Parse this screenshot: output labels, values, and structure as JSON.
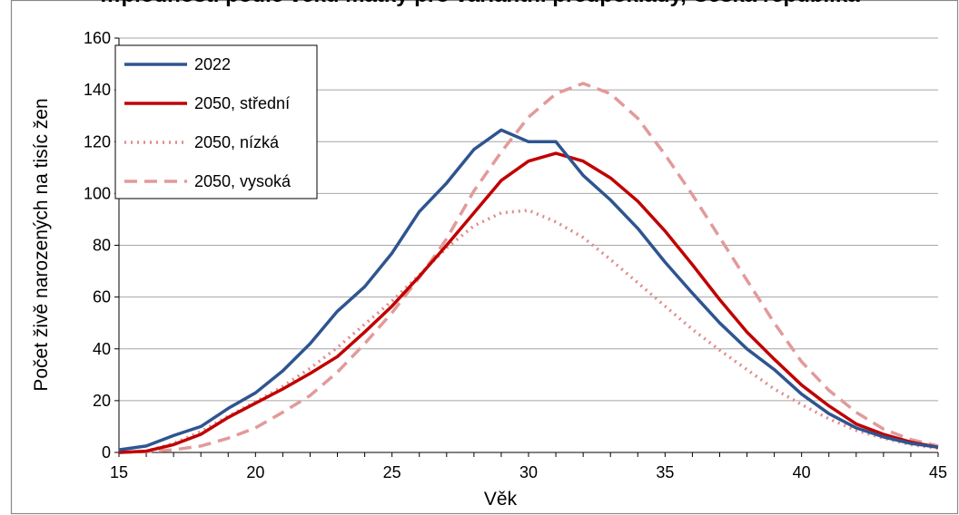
{
  "colors": {
    "2022": "#2e5590",
    "2050, střední": "#c00000",
    "2050, nízká": "#e28a8a",
    "2050, vysoká": "#e29a9a",
    "grid": "#a6a6a6"
  },
  "chart_data": {
    "type": "line",
    "title": "…plodnosti podle věku matky pro variantní předpoklady, Česká republika",
    "xlabel": "Věk",
    "ylabel": "Počet živě narozených na tisíc žen",
    "xlim": [
      15,
      45
    ],
    "ylim": [
      0,
      160
    ],
    "x_ticks": [
      15,
      20,
      25,
      30,
      35,
      40,
      45
    ],
    "y_ticks": [
      0,
      20,
      40,
      60,
      80,
      100,
      120,
      140,
      160
    ],
    "grid": "horizontal",
    "legend_position": "top-left",
    "x": [
      15,
      16,
      17,
      18,
      19,
      20,
      21,
      22,
      23,
      24,
      25,
      26,
      27,
      28,
      29,
      30,
      31,
      32,
      33,
      34,
      35,
      36,
      37,
      38,
      39,
      40,
      41,
      42,
      43,
      44,
      45
    ],
    "series": [
      {
        "name": "2022",
        "style": "solid",
        "values": [
          1,
          2.5,
          6.5,
          10,
          17,
          23,
          31.5,
          42,
          54.5,
          64,
          77,
          93,
          104,
          117,
          124.5,
          120,
          120,
          107,
          97.5,
          86.5,
          73.5,
          61.5,
          50,
          40,
          32,
          22.5,
          15,
          9.5,
          6,
          3.5,
          2
        ]
      },
      {
        "name": "2050, střední",
        "style": "solid",
        "values": [
          0,
          0.5,
          3,
          7,
          13.5,
          19,
          24.5,
          30.5,
          37,
          46.5,
          56.5,
          68,
          80,
          92.5,
          105,
          112.5,
          115.5,
          112.5,
          106,
          97,
          85.5,
          72.5,
          59,
          46.5,
          36,
          26,
          18,
          11,
          7,
          4,
          2
        ]
      },
      {
        "name": "2050, nízká",
        "style": "dotted",
        "values": [
          0,
          0.5,
          3.5,
          8,
          14,
          19.5,
          25.5,
          32.5,
          40.5,
          49.5,
          58.5,
          68.5,
          79,
          87.5,
          92.5,
          93.5,
          89,
          83,
          74.5,
          65.5,
          56.5,
          47.5,
          39.5,
          32,
          24.5,
          18.5,
          13,
          8.5,
          5.5,
          3,
          1.5
        ]
      },
      {
        "name": "2050, vysoká",
        "style": "dashed",
        "values": [
          0,
          0.3,
          1,
          2.5,
          5.5,
          9.5,
          15.5,
          22,
          31,
          42,
          54,
          67.5,
          82.5,
          101,
          116,
          129.5,
          138.5,
          142.5,
          138.5,
          129,
          115,
          99.5,
          83,
          66.5,
          50,
          35,
          24,
          15.5,
          9,
          5,
          2.5
        ]
      }
    ]
  }
}
